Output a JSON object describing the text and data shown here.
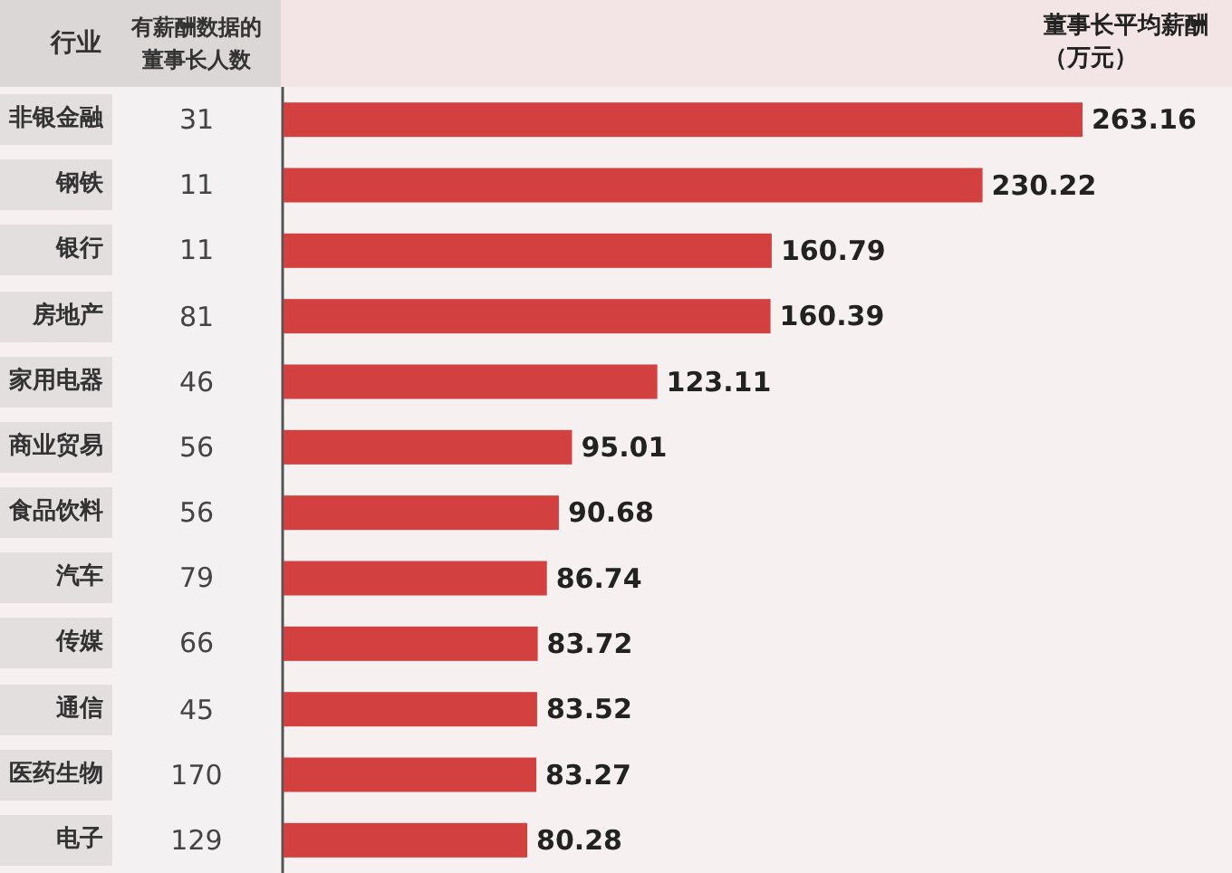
{
  "chart_data": [
    {
      "type": "other",
      "ylabel": "行业",
      "title": "有薪酬数据的董事长人数",
      "categories": [
        "非银金融",
        "钢铁",
        "银行",
        "房地产",
        "家用电器",
        "商业贸易",
        "食品饮料",
        "汽车",
        "传媒",
        "通信",
        "医药生物",
        "电子"
      ],
      "values": [
        31,
        11,
        11,
        81,
        46,
        56,
        56,
        79,
        66,
        45,
        170,
        129
      ],
      "data_labels": true
    },
    {
      "type": "bar",
      "orientation": "horizontal",
      "xlabel": "董事长平均薪酬（万元）",
      "categories": [
        null,
        null,
        null,
        null,
        null,
        null,
        null,
        null,
        null,
        null,
        null,
        null
      ],
      "values": [
        263.16,
        230.22,
        160.79,
        160.39,
        123.11,
        95.01,
        90.68,
        86.74,
        83.72,
        83.52,
        83.27,
        80.28
      ],
      "color": "#d2403f",
      "data_labels": true
    }
  ]
}
